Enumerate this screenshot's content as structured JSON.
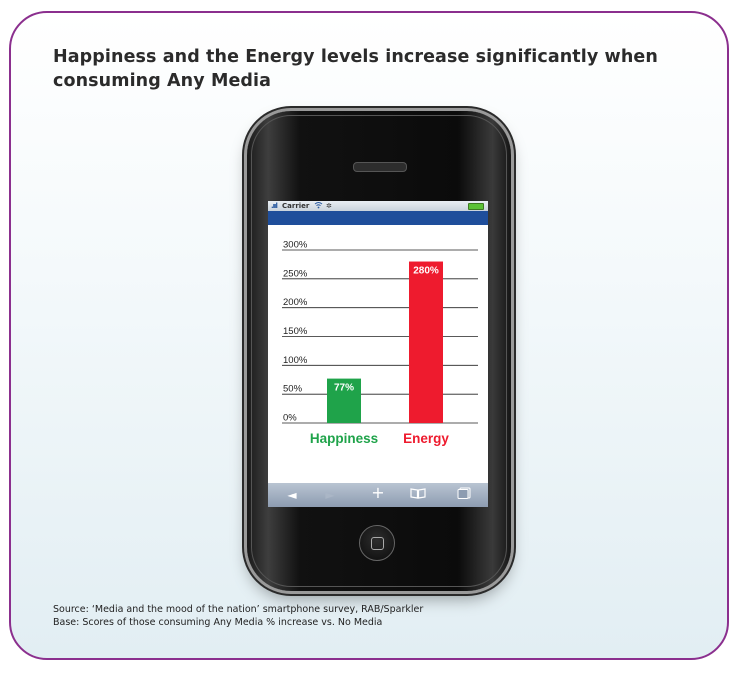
{
  "title": "Happiness and the Energy levels increase significantly when consuming Any Media",
  "source": "Source: ‘Media and the mood of the nation’ smartphone survey, RAB/Sparkler",
  "base": "Base: Scores of those consuming Any Media % increase vs. No Media",
  "status_bar": {
    "signal": ".ııl",
    "carrier": "Carrier",
    "wifi_icon": "wifi-icon",
    "loading_icon": "loading-icon",
    "battery_icon": "battery-icon"
  },
  "toolbar": {
    "back": "◄",
    "forward": "►",
    "add": "+",
    "bookmarks": "📖",
    "pages": "3"
  },
  "chart_data": {
    "type": "bar",
    "categories": [
      "Happiness",
      "Energy"
    ],
    "values": [
      77,
      280
    ],
    "value_labels": [
      "77%",
      "280%"
    ],
    "colors": [
      "#1fa34a",
      "#ee1b2e"
    ],
    "y_ticks": [
      "0%",
      "50%",
      "100%",
      "150%",
      "200%",
      "250%",
      "300%"
    ],
    "ylim": [
      0,
      300
    ],
    "grid": true
  }
}
